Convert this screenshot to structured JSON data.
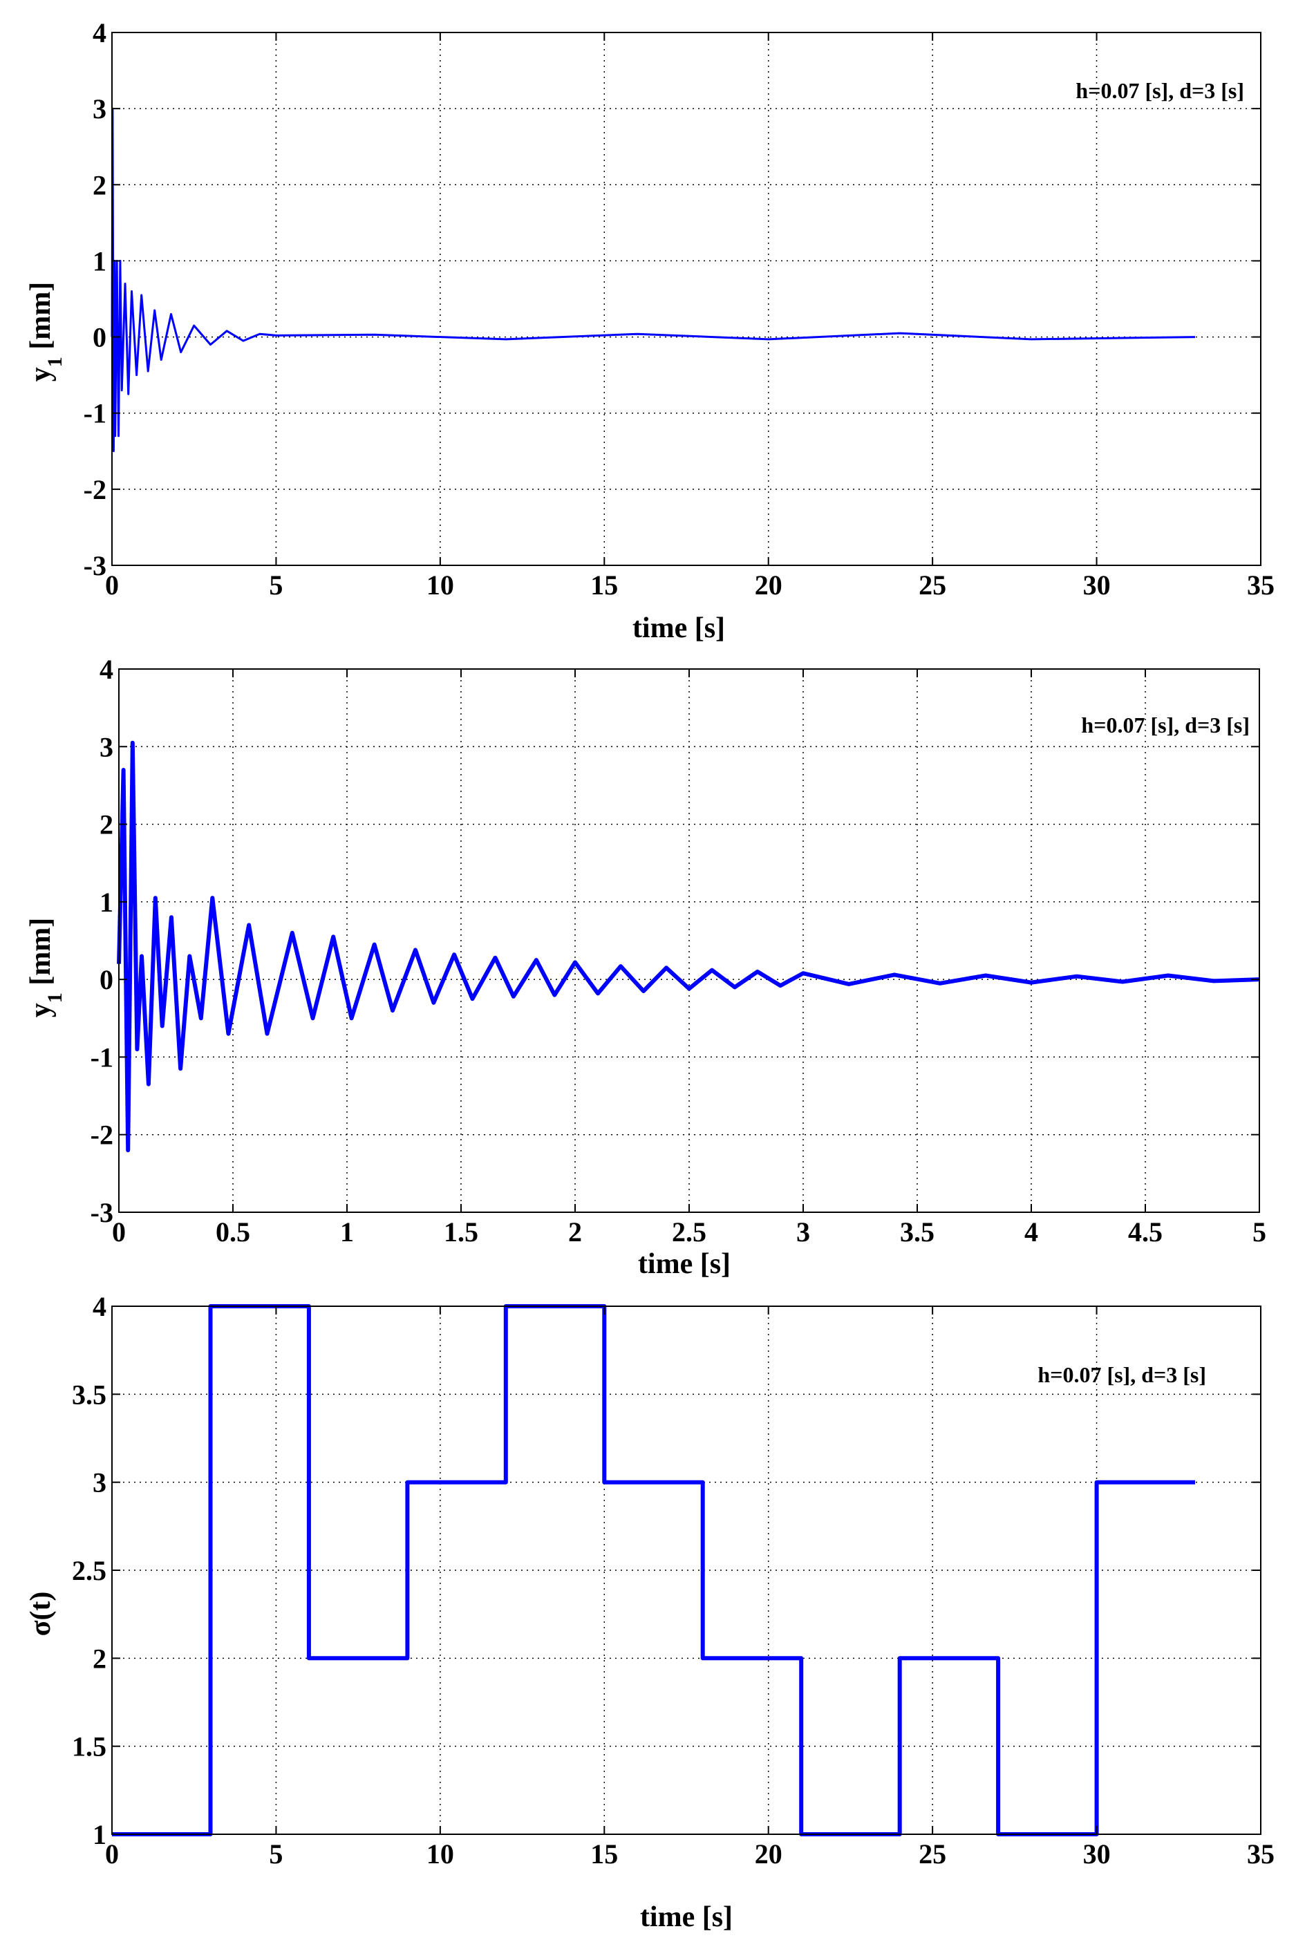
{
  "chart_data": [
    {
      "type": "line",
      "xlabel": "time [s]",
      "ylabel": "y1 [mm]",
      "ylabel_main": "y",
      "ylabel_sub": "1",
      "ylabel_unit": " [mm]",
      "annotation": "h=0.07 [s], d=3 [s]",
      "xlim": [
        0,
        35
      ],
      "ylim": [
        -3,
        4
      ],
      "xticks": [
        "0",
        "5",
        "10",
        "15",
        "20",
        "25",
        "30",
        "35"
      ],
      "yticks": [
        "-3",
        "-2",
        "-1",
        "0",
        "1",
        "2",
        "3",
        "4"
      ],
      "grid": true,
      "series": [
        {
          "color": "#0000ff",
          "x": [
            0,
            0.02,
            0.05,
            0.08,
            0.1,
            0.15,
            0.2,
            0.25,
            0.3,
            0.4,
            0.5,
            0.6,
            0.75,
            0.9,
            1.1,
            1.3,
            1.5,
            1.8,
            2.1,
            2.5,
            3.0,
            3.5,
            4.0,
            4.5,
            5.0,
            8,
            12,
            16,
            20,
            24,
            28,
            33
          ],
          "y": [
            0,
            3.0,
            -1.5,
            1.0,
            -1.3,
            1.0,
            -1.3,
            1.0,
            -0.7,
            0.7,
            -0.75,
            0.6,
            -0.5,
            0.55,
            -0.45,
            0.35,
            -0.3,
            0.3,
            -0.2,
            0.15,
            -0.1,
            0.08,
            -0.05,
            0.04,
            0.02,
            0.03,
            -0.03,
            0.04,
            -0.03,
            0.05,
            -0.03,
            0.0
          ]
        }
      ]
    },
    {
      "type": "line",
      "xlabel": "time [s]",
      "ylabel": "y1 [mm]",
      "ylabel_main": "y",
      "ylabel_sub": "1",
      "ylabel_unit": " [mm]",
      "annotation": "h=0.07 [s], d=3 [s]",
      "xlim": [
        0,
        5
      ],
      "ylim": [
        -3,
        4
      ],
      "xticks": [
        "0",
        "0.5",
        "1",
        "1.5",
        "2",
        "2.5",
        "3",
        "3.5",
        "4",
        "4.5",
        "5"
      ],
      "yticks": [
        "-3",
        "-2",
        "-1",
        "0",
        "1",
        "2",
        "3",
        "4"
      ],
      "grid": true,
      "series": [
        {
          "color": "#0000ff",
          "x": [
            0,
            0.02,
            0.04,
            0.06,
            0.08,
            0.1,
            0.13,
            0.16,
            0.19,
            0.23,
            0.27,
            0.31,
            0.36,
            0.41,
            0.48,
            0.57,
            0.65,
            0.76,
            0.85,
            0.94,
            1.02,
            1.12,
            1.2,
            1.3,
            1.38,
            1.47,
            1.55,
            1.65,
            1.73,
            1.83,
            1.91,
            2.0,
            2.1,
            2.2,
            2.3,
            2.4,
            2.5,
            2.6,
            2.7,
            2.8,
            2.9,
            3.0,
            3.2,
            3.4,
            3.6,
            3.8,
            4.0,
            4.2,
            4.4,
            4.6,
            4.8,
            5.0
          ],
          "y": [
            0.2,
            2.7,
            -2.2,
            3.05,
            -0.9,
            0.3,
            -1.35,
            1.05,
            -0.6,
            0.8,
            -1.15,
            0.3,
            -0.5,
            1.05,
            -0.7,
            0.7,
            -0.7,
            0.6,
            -0.5,
            0.55,
            -0.5,
            0.45,
            -0.4,
            0.38,
            -0.3,
            0.32,
            -0.25,
            0.28,
            -0.22,
            0.25,
            -0.2,
            0.22,
            -0.18,
            0.17,
            -0.15,
            0.15,
            -0.12,
            0.12,
            -0.1,
            0.1,
            -0.08,
            0.08,
            -0.06,
            0.06,
            -0.05,
            0.05,
            -0.04,
            0.04,
            -0.03,
            0.05,
            -0.02,
            0.0
          ]
        }
      ]
    },
    {
      "type": "line",
      "xlabel": "time [s]",
      "ylabel": "σ(t)",
      "annotation": "h=0.07 [s], d=3 [s]",
      "xlim": [
        0,
        35
      ],
      "ylim": [
        1,
        4
      ],
      "xticks": [
        "0",
        "5",
        "10",
        "15",
        "20",
        "25",
        "30",
        "35"
      ],
      "yticks": [
        "1",
        "1.5",
        "2",
        "2.5",
        "3",
        "3.5",
        "4"
      ],
      "grid": true,
      "series": [
        {
          "color": "#0000ff",
          "step": true,
          "x": [
            0,
            3,
            6,
            9,
            12,
            15,
            18,
            21,
            24,
            27,
            30,
            33
          ],
          "y": [
            1,
            4,
            2,
            3,
            4,
            3,
            2,
            1,
            2,
            1,
            3,
            3
          ]
        }
      ]
    }
  ]
}
